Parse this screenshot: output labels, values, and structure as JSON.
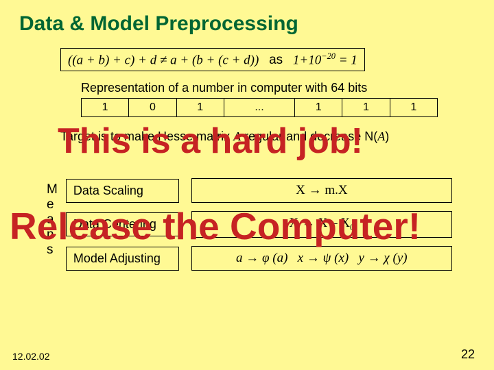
{
  "colors": {
    "background": "#fff994",
    "title": "#006633",
    "text": "#000000",
    "highlight": "#c62323"
  },
  "title": "Data & Model Preprocessing",
  "equation": {
    "left": "((a + b) + c) + d ≠ a + (b + (c + d))",
    "as": "as",
    "right_prefix": "1+10",
    "right_exp": "−20",
    "right_suffix": " = 1"
  },
  "repr_text": "Representation of a number in computer with 64 bits",
  "bits": [
    "1",
    "0",
    "1",
    "...",
    "1",
    "1",
    "1"
  ],
  "overlays": {
    "hard": "This is a hard job!",
    "release": "Release the Computer!"
  },
  "target": {
    "prefix": "Target is to make Hesse matrix ",
    "A": "A",
    "mid": " regular and decrease ",
    "N": "N(",
    "A2": "A",
    "end": ")"
  },
  "means_label": "Means",
  "methods": [
    {
      "label": "Data Scaling",
      "formula": "X → m.X"
    },
    {
      "label": "Data Centering",
      "formula": "X → X – X₀"
    },
    {
      "label": "Model Adjusting",
      "formula": "a → φ (a)   x → ψ (x)   y → χ (y)"
    }
  ],
  "footer": {
    "date": "12.02.02",
    "page": "22"
  }
}
